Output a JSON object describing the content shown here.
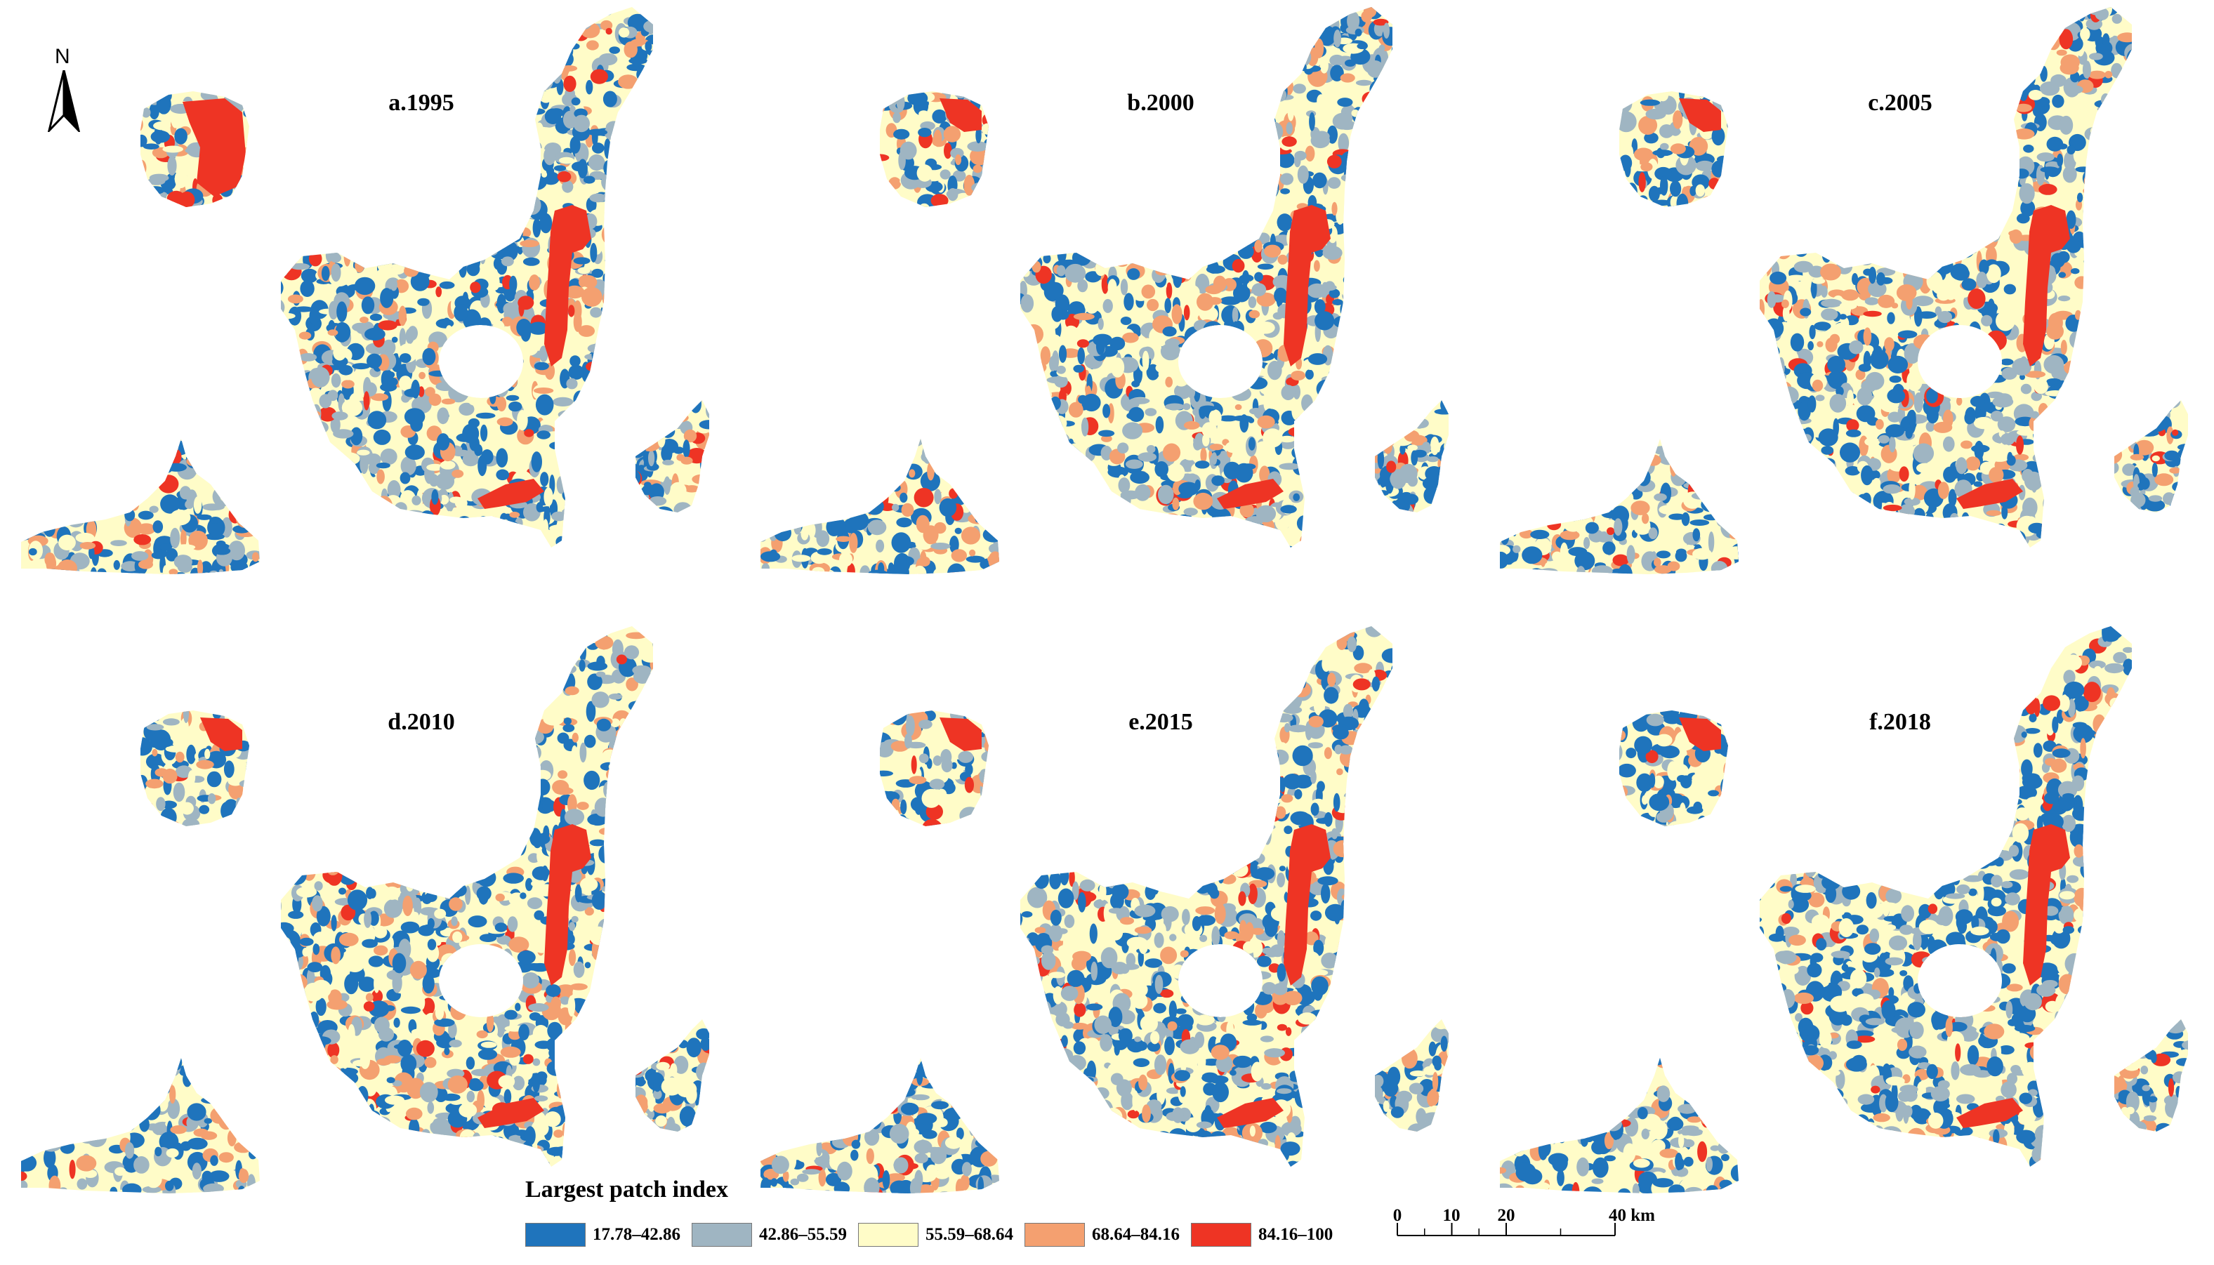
{
  "panels": [
    {
      "id": "a",
      "title": "a.1995"
    },
    {
      "id": "b",
      "title": "b.2000"
    },
    {
      "id": "c",
      "title": "c.2005"
    },
    {
      "id": "d",
      "title": "d.2010"
    },
    {
      "id": "e",
      "title": "e.2015"
    },
    {
      "id": "f",
      "title": "f.2018"
    }
  ],
  "north": {
    "label": "N"
  },
  "legend": {
    "title": "Largest patch index",
    "classes": [
      {
        "label": "17.78–42.86",
        "color": "#1f74bc"
      },
      {
        "label": "42.86–55.59",
        "color": "#9fb5c2"
      },
      {
        "label": "55.59–68.64",
        "color": "#fffcc8"
      },
      {
        "label": "68.64–84.16",
        "color": "#f4a070"
      },
      {
        "label": "84.16–100",
        "color": "#ee3424"
      }
    ]
  },
  "scalebar": {
    "ticks": [
      {
        "label": "0",
        "km": 0
      },
      {
        "label": "10",
        "km": 10
      },
      {
        "label": "20",
        "km": 20
      },
      {
        "label": "40 km",
        "km": 40
      }
    ]
  }
}
